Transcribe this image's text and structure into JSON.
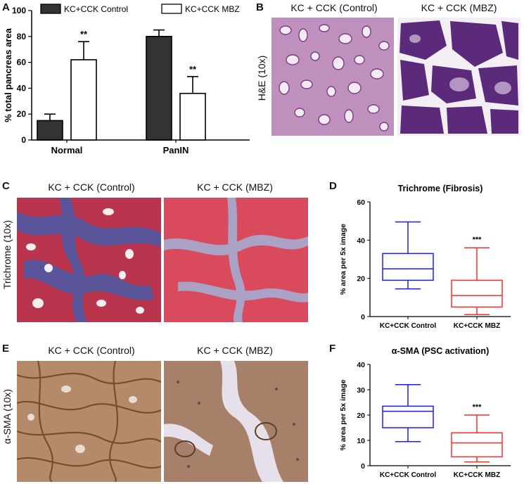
{
  "panels": {
    "A": {
      "letter": "A",
      "chart_data": {
        "type": "bar",
        "categories": [
          "Normal",
          "PanIN"
        ],
        "series": [
          {
            "name": "KC+CCK Control",
            "values": [
              15,
              80
            ],
            "errors": [
              5,
              5
            ],
            "color": "#333333",
            "fill": "solid"
          },
          {
            "name": "KC+CCK MBZ",
            "values": [
              62,
              36
            ],
            "errors": [
              14,
              13
            ],
            "color": "#ffffff",
            "fill": "open"
          }
        ],
        "significance": [
          "**",
          "**"
        ],
        "ylabel": "% total pancreas area",
        "yticks": [
          0,
          20,
          40,
          60,
          80,
          100
        ],
        "ylim": [
          0,
          100
        ],
        "legend": "top"
      }
    },
    "B": {
      "letter": "B",
      "titles": [
        "KC + CCK (Control)",
        "KC + CCK (MBZ)"
      ],
      "row_label": "H&E  (10x)"
    },
    "C": {
      "letter": "C",
      "titles": [
        "KC + CCK (Control)",
        "KC + CCK (MBZ)"
      ],
      "row_label": "Trichrome (10x)"
    },
    "D": {
      "letter": "D",
      "chart_data": {
        "type": "box",
        "title": "Trichrome (Fibrosis)",
        "categories": [
          "KC+CCK Control",
          "KC+CCK MBZ"
        ],
        "boxes": [
          {
            "min": 14.5,
            "q1": 19,
            "median": 25,
            "q3": 33,
            "max": 49.5,
            "color": "#1a1aff"
          },
          {
            "min": 1,
            "q1": 5,
            "median": 11,
            "q3": 19,
            "max": 36,
            "color": "#ff2a2a"
          }
        ],
        "significance": [
          "",
          "***"
        ],
        "ylabel": "% area per 5x image",
        "yticks": [
          0,
          20,
          40,
          60
        ],
        "ylim": [
          0,
          60
        ]
      }
    },
    "E": {
      "letter": "E",
      "titles": [
        "KC + CCK (Control)",
        "KC + CCK (MBZ)"
      ],
      "row_label": "α-SMA (10x)"
    },
    "F": {
      "letter": "F",
      "chart_data": {
        "type": "box",
        "title": "α-SMA (PSC activation)",
        "categories": [
          "KC+CCK Control",
          "KC+CCK MBZ"
        ],
        "boxes": [
          {
            "min": 9.5,
            "q1": 15,
            "median": 21.5,
            "q3": 23.5,
            "max": 32,
            "color": "#1a1aff"
          },
          {
            "min": 1.5,
            "q1": 3.5,
            "median": 9,
            "q3": 13,
            "max": 20,
            "color": "#ff2a2a"
          }
        ],
        "significance": [
          "",
          "***"
        ],
        "ylabel": "% area per 5x image",
        "yticks": [
          0,
          10,
          20,
          30,
          40
        ],
        "ylim": [
          0,
          40
        ]
      }
    }
  }
}
